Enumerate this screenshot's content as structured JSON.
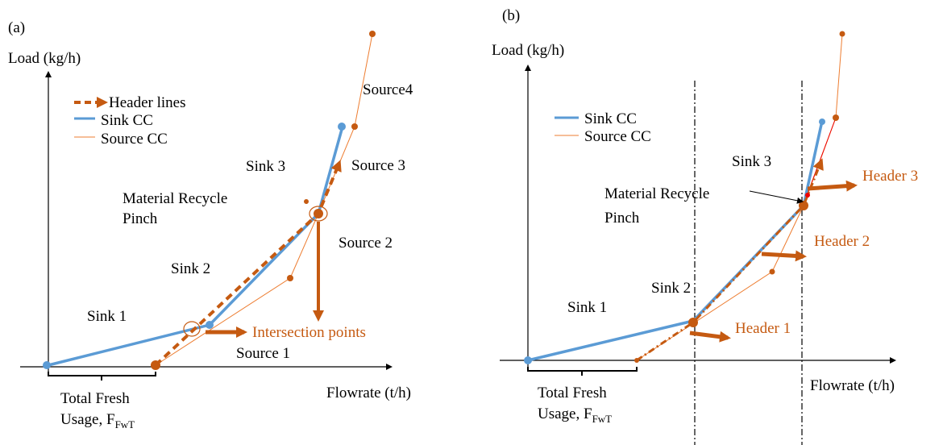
{
  "panels": [
    {
      "label": "(a)",
      "y_axis_label": "Load (kg/h)",
      "x_axis_label": "Flowrate (t/h)",
      "legend": [
        "Header lines",
        "Sink CC",
        "Source CC"
      ],
      "annotations": [
        "Source4",
        "Sink 3",
        "Source 3",
        "Material Recycle",
        "Pinch",
        "Source 2",
        "Sink 2",
        "Sink 1",
        "Intersection points",
        "Source 1"
      ],
      "fresh_usage": {
        "line1": "Total Fresh",
        "line2": "Usage, F",
        "subscript": "FwT"
      }
    },
    {
      "label": "(b)",
      "y_axis_label": "Load (kg/h)",
      "x_axis_label": "Flowrate (t/h)",
      "legend": [
        "Sink CC",
        "Source CC"
      ],
      "annotations": [
        "Sink 3",
        "Header 3",
        "Material Recycle",
        "Pinch",
        "Header 2",
        "Sink 2",
        "Sink 1",
        "Header 1"
      ],
      "fresh_usage": {
        "line1": "Total Fresh",
        "line2": "Usage, F",
        "subscript": "FwT"
      }
    }
  ]
}
